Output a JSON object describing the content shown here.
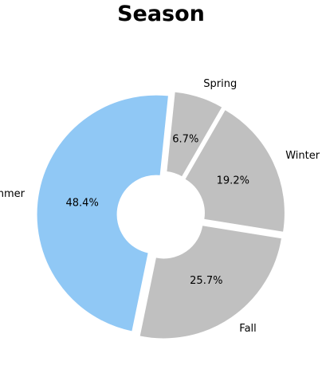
{
  "chart_data": {
    "type": "pie",
    "title": "Season",
    "categories": [
      "Spring",
      "Summer",
      "Fall",
      "Winter"
    ],
    "values": [
      6.7,
      48.4,
      25.7,
      19.2
    ],
    "value_labels": [
      "6.7%",
      "48.4%",
      "25.7%",
      "19.2%"
    ],
    "colors": [
      "#c0c0c0",
      "#90c8f5",
      "#c0c0c0",
      "#c0c0c0"
    ],
    "donut": true,
    "exploded": true,
    "legend": "none"
  }
}
